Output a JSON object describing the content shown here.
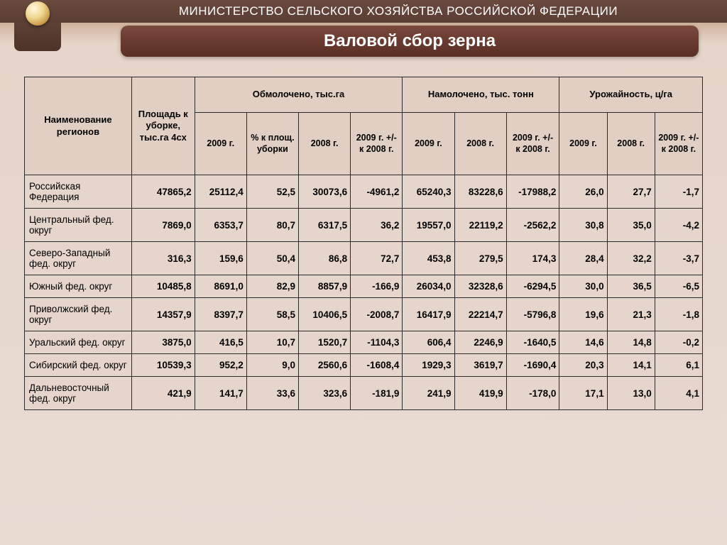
{
  "header": {
    "ministry": "МИНИСТЕРСТВО СЕЛЬСКОГО ХОЗЯЙСТВА РОССИЙСКОЙ ФЕДЕРАЦИИ",
    "title": "Валовой сбор зерна"
  },
  "colors": {
    "header_bg": "#6a4a3f",
    "title_bg": "#6a3a30",
    "page_bg1": "#b8947a",
    "page_bg2": "#e8dbd2",
    "table_border": "#2a2a2a",
    "table_cell_bg": "#e6d5ca",
    "table_head_bg": "#e2cfc3"
  },
  "table": {
    "columns": {
      "region": "Наименование регионов",
      "area": "Площадь к уборке, тыс.га 4cx",
      "group_thresh": "Обмолочено, тыс.га",
      "group_collect": "Намолочено, тыс. тонн",
      "group_yield": "Урожайность, ц/га",
      "sub_2009": "2009 г.",
      "sub_pct": "% к площ. уборки",
      "sub_2008": "2008 г.",
      "sub_diff": "2009 г. +/- к 2008 г.",
      "sub_diff2": "2009 г. +/- к 2008 г.",
      "sub_diff3": "2009 г. +/- к 2008 г."
    },
    "rows": [
      {
        "region": "Российская Федерация",
        "area": "47865,2",
        "t2009": "25112,4",
        "tpct": "52,5",
        "t2008": "30073,6",
        "tdiff": "-4961,2",
        "c2009": "65240,3",
        "c2008": "83228,6",
        "cdiff": "-17988,2",
        "y2009": "26,0",
        "y2008": "27,7",
        "ydiff": "-1,7"
      },
      {
        "region": "Центральный фед. округ",
        "area": "7869,0",
        "t2009": "6353,7",
        "tpct": "80,7",
        "t2008": "6317,5",
        "tdiff": "36,2",
        "c2009": "19557,0",
        "c2008": "22119,2",
        "cdiff": "-2562,2",
        "y2009": "30,8",
        "y2008": "35,0",
        "ydiff": "-4,2"
      },
      {
        "region": "Северо-Западный фед. округ",
        "area": "316,3",
        "t2009": "159,6",
        "tpct": "50,4",
        "t2008": "86,8",
        "tdiff": "72,7",
        "c2009": "453,8",
        "c2008": "279,5",
        "cdiff": "174,3",
        "y2009": "28,4",
        "y2008": "32,2",
        "ydiff": "-3,7"
      },
      {
        "region": "Южный фед. округ",
        "area": "10485,8",
        "t2009": "8691,0",
        "tpct": "82,9",
        "t2008": "8857,9",
        "tdiff": "-166,9",
        "c2009": "26034,0",
        "c2008": "32328,6",
        "cdiff": "-6294,5",
        "y2009": "30,0",
        "y2008": "36,5",
        "ydiff": "-6,5"
      },
      {
        "region": "Приволжский фед. округ",
        "area": "14357,9",
        "t2009": "8397,7",
        "tpct": "58,5",
        "t2008": "10406,5",
        "tdiff": "-2008,7",
        "c2009": "16417,9",
        "c2008": "22214,7",
        "cdiff": "-5796,8",
        "y2009": "19,6",
        "y2008": "21,3",
        "ydiff": "-1,8"
      },
      {
        "region": "Уральский фед. округ",
        "area": "3875,0",
        "t2009": "416,5",
        "tpct": "10,7",
        "t2008": "1520,7",
        "tdiff": "-1104,3",
        "c2009": "606,4",
        "c2008": "2246,9",
        "cdiff": "-1640,5",
        "y2009": "14,6",
        "y2008": "14,8",
        "ydiff": "-0,2"
      },
      {
        "region": "Сибирский фед. округ",
        "area": "10539,3",
        "t2009": "952,2",
        "tpct": "9,0",
        "t2008": "2560,6",
        "tdiff": "-1608,4",
        "c2009": "1929,3",
        "c2008": "3619,7",
        "cdiff": "-1690,4",
        "y2009": "20,3",
        "y2008": "14,1",
        "ydiff": "6,1"
      },
      {
        "region": "Дальневосточный фед. округ",
        "area": "421,9",
        "t2009": "141,7",
        "tpct": "33,6",
        "t2008": "323,6",
        "tdiff": "-181,9",
        "c2009": "241,9",
        "c2008": "419,9",
        "cdiff": "-178,0",
        "y2009": "17,1",
        "y2008": "13,0",
        "ydiff": "4,1"
      }
    ]
  }
}
